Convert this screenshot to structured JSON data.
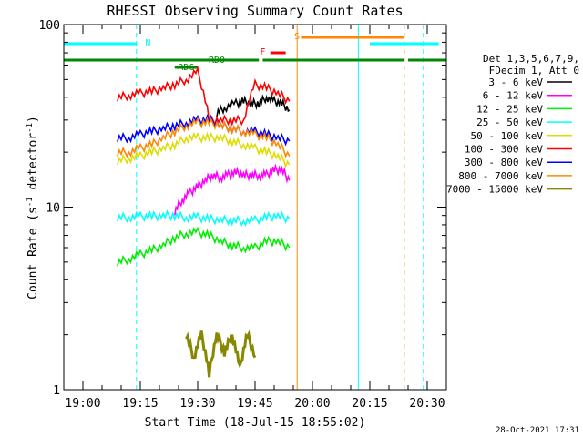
{
  "chart_data": {
    "type": "line",
    "title": "RHESSI Observing Summary Count Rates",
    "xlabel": "Start Time (18-Jul-15 18:55:02)",
    "ylabel": "Count Rate (s^-1 detector^-1)",
    "ylabel_main": "Count Rate (s",
    "ylabel_sup1": "-1",
    "ylabel_mid": " detector",
    "ylabel_sup2": "-1",
    "ylabel_end": ")",
    "y_scale": "log",
    "ylim": [
      1,
      100
    ],
    "xlim": [
      "18:55",
      "20:35"
    ],
    "x_ticks": [
      "19:00",
      "19:15",
      "19:30",
      "19:45",
      "20:00",
      "20:15",
      "20:30"
    ],
    "y_ticks": [
      "1",
      "10",
      "100"
    ],
    "footer_date": "28-Oct-2021 17:31",
    "legend": {
      "header": [
        "Det 1,3,5,6,7,9,",
        "FDecim 1, Att 0"
      ],
      "placement": "right",
      "entries": [
        {
          "label": "3 - 6 keV",
          "color": "#000000"
        },
        {
          "label": "6 - 12 keV",
          "color": "#ff00ff"
        },
        {
          "label": "12 - 25 keV",
          "color": "#00ee00"
        },
        {
          "label": "25 - 50 keV",
          "color": "#00ffff"
        },
        {
          "label": "50 - 100 keV",
          "color": "#dddd00"
        },
        {
          "label": "100 - 300 keV",
          "color": "#ff0000"
        },
        {
          "label": "300 - 800 keV",
          "color": "#0000ff"
        },
        {
          "label": "800 - 7000 keV",
          "color": "#ff8800"
        },
        {
          "label": "7000 - 15000 keV",
          "color": "#888800"
        }
      ]
    },
    "flags": [
      {
        "label": "N",
        "color": "#00ffff",
        "segments": [
          [
            "18:55",
            "19:14"
          ],
          [
            "20:15",
            "20:33"
          ]
        ]
      },
      {
        "label": "RD0",
        "color": "#008800",
        "segments": [
          [
            "18:55",
            "19:46"
          ],
          [
            "19:47",
            "20:24"
          ],
          [
            "20:25",
            "20:35"
          ]
        ]
      },
      {
        "label": "RD6",
        "color": "#008800",
        "segments": [
          [
            "19:24",
            "19:30"
          ]
        ]
      },
      {
        "label": "F",
        "color": "#ff0000",
        "segments": [
          [
            "19:49",
            "19:53"
          ]
        ]
      },
      {
        "label": "S",
        "color": "#ff8800",
        "segments": [
          [
            "19:57",
            "20:24"
          ]
        ]
      }
    ],
    "markers": [
      {
        "x": "19:14",
        "color": "#00ffff",
        "style": "dashed"
      },
      {
        "x": "20:12",
        "color": "#00ffff",
        "style": "solid"
      },
      {
        "x": "20:29",
        "color": "#00ffff",
        "style": "dashed"
      },
      {
        "x": "19:56",
        "color": "#ff8800",
        "style": "solid"
      },
      {
        "x": "20:24",
        "color": "#ff8800",
        "style": "dashed"
      }
    ],
    "series": [
      {
        "name": "3 - 6 keV",
        "color": "#000000",
        "x": [
          "19:35",
          "19:37",
          "19:40",
          "19:42",
          "19:44",
          "19:46",
          "19:48",
          "19:50",
          "19:52",
          "19:54"
        ],
        "y": [
          33,
          35,
          37,
          38,
          37,
          37,
          40,
          38,
          37,
          34
        ]
      },
      {
        "name": "6 - 12 keV",
        "color": "#ff00ff",
        "x": [
          "19:24",
          "19:26",
          "19:28",
          "19:30",
          "19:32",
          "19:34",
          "19:36",
          "19:38",
          "19:40",
          "19:42",
          "19:44",
          "19:46",
          "19:48",
          "19:50",
          "19:52",
          "19:54"
        ],
        "y": [
          9.5,
          11,
          12,
          13,
          14,
          15,
          14.5,
          15,
          15.5,
          15,
          15,
          15,
          15,
          16,
          16,
          14
        ]
      },
      {
        "name": "12 - 25 keV",
        "color": "#00ee00",
        "x": [
          "19:09",
          "19:12",
          "19:15",
          "19:18",
          "19:21",
          "19:24",
          "19:27",
          "19:30",
          "19:33",
          "19:36",
          "19:39",
          "19:42",
          "19:45",
          "19:48",
          "19:51",
          "19:54"
        ],
        "y": [
          5,
          5.2,
          5.5,
          5.8,
          6.2,
          6.8,
          7.2,
          7.3,
          7.0,
          6.5,
          6.2,
          6.0,
          6.0,
          6.5,
          6.5,
          6.0
        ]
      },
      {
        "name": "25 - 50 keV",
        "color": "#00ffff",
        "x": [
          "19:09",
          "19:12",
          "19:15",
          "19:18",
          "19:21",
          "19:24",
          "19:27",
          "19:30",
          "19:33",
          "19:36",
          "19:39",
          "19:42",
          "19:45",
          "19:48",
          "19:51",
          "19:54"
        ],
        "y": [
          8.8,
          8.8,
          8.9,
          8.9,
          9.0,
          9.0,
          8.8,
          8.8,
          8.6,
          8.5,
          8.5,
          8.4,
          8.5,
          8.8,
          9.0,
          8.6
        ]
      },
      {
        "name": "50 - 100 keV",
        "color": "#dddd00",
        "x": [
          "19:09",
          "19:12",
          "19:15",
          "19:18",
          "19:21",
          "19:24",
          "19:27",
          "19:30",
          "19:33",
          "19:36",
          "19:39",
          "19:42",
          "19:45",
          "19:48",
          "19:51",
          "19:54"
        ],
        "y": [
          18,
          18.5,
          19,
          20,
          21,
          22,
          24,
          24,
          24,
          24,
          23,
          22,
          21,
          20,
          19,
          17
        ]
      },
      {
        "name": "100 - 300 keV",
        "color": "#ff0000",
        "x": [
          "19:09",
          "19:12",
          "19:15",
          "19:18",
          "19:21",
          "19:24",
          "19:27",
          "19:30",
          "19:33",
          "19:36",
          "19:39",
          "19:42",
          "19:45",
          "19:48",
          "19:51",
          "19:54"
        ],
        "y": [
          40,
          41,
          42,
          43,
          45,
          47,
          50,
          55,
          30,
          30,
          30,
          30,
          47,
          45,
          42,
          38
        ]
      },
      {
        "name": "300 - 800 keV",
        "color": "#0000ff",
        "x": [
          "19:09",
          "19:12",
          "19:15",
          "19:18",
          "19:21",
          "19:24",
          "19:27",
          "19:30",
          "19:33",
          "19:36",
          "19:39",
          "19:42",
          "19:45",
          "19:48",
          "19:51",
          "19:54"
        ],
        "y": [
          24,
          24,
          25,
          26,
          27,
          28,
          29,
          30,
          30,
          28,
          27,
          26,
          26,
          25,
          24,
          23
        ]
      },
      {
        "name": "800 - 7000 keV",
        "color": "#ff8800",
        "x": [
          "19:09",
          "19:12",
          "19:15",
          "19:18",
          "19:21",
          "19:24",
          "19:27",
          "19:30",
          "19:33",
          "19:36",
          "19:39",
          "19:42",
          "19:45",
          "19:48",
          "19:51",
          "19:54"
        ],
        "y": [
          20,
          20,
          21,
          22,
          24,
          26,
          28,
          29,
          29,
          28,
          27,
          26,
          25,
          24,
          22,
          19
        ]
      },
      {
        "name": "7000 - 15000 keV",
        "color": "#888800",
        "x": [
          "19:27",
          "19:29",
          "19:31",
          "19:33",
          "19:35",
          "19:37",
          "19:39",
          "19:41",
          "19:43",
          "19:45"
        ],
        "y": [
          2,
          1.5,
          2,
          1.2,
          2,
          1.6,
          2,
          1.3,
          2,
          1.5
        ]
      }
    ]
  }
}
